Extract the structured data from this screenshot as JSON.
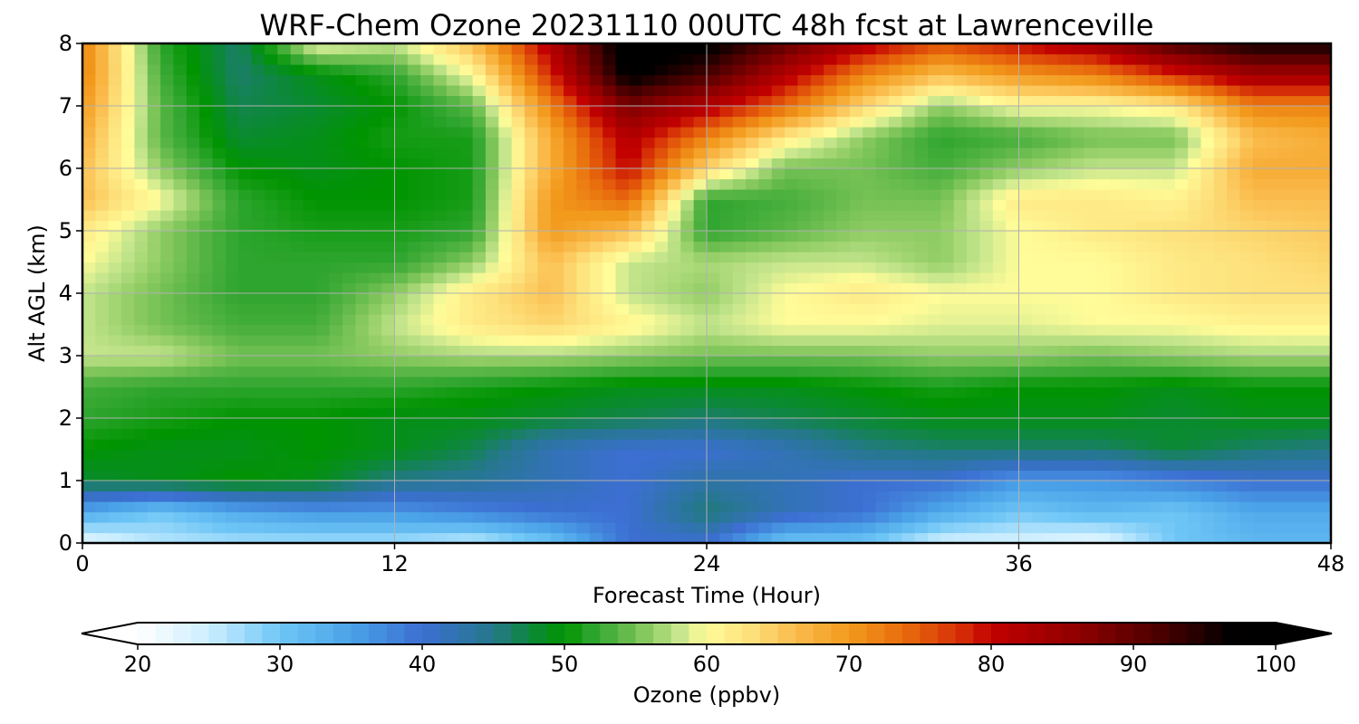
{
  "chart_data": {
    "type": "heatmap",
    "title": "WRF-Chem Ozone  20231110 00UTC 48h fcst at Lawrenceville",
    "xlabel": "Forecast Time (Hour)",
    "ylabel": "Alt AGL (km)",
    "xlim": [
      0,
      48
    ],
    "ylim": [
      0,
      8
    ],
    "xticks": [
      "0",
      "12",
      "24",
      "36",
      "48"
    ],
    "yticks": [
      "0",
      "1",
      "2",
      "3",
      "4",
      "5",
      "6",
      "7",
      "8"
    ],
    "grid": true,
    "x": [
      0,
      3,
      6,
      9,
      12,
      15,
      18,
      21,
      24,
      27,
      30,
      33,
      36,
      39,
      42,
      45,
      48
    ],
    "y": [
      0,
      0.5,
      1,
      1.5,
      2,
      2.5,
      3,
      3.5,
      4,
      4.5,
      5,
      5.5,
      6,
      6.5,
      7,
      7.5,
      8
    ],
    "z": [
      [
        22,
        26,
        27,
        27,
        27,
        25,
        30,
        40,
        40,
        30,
        30,
        24,
        24,
        22,
        30,
        32,
        32
      ],
      [
        34,
        30,
        34,
        36,
        36,
        38,
        40,
        40,
        46,
        42,
        40,
        34,
        30,
        32,
        30,
        34,
        34
      ],
      [
        48,
        49,
        50,
        49,
        45,
        44,
        42,
        40,
        43,
        42,
        40,
        40,
        36,
        36,
        38,
        40,
        40
      ],
      [
        50,
        49,
        49,
        50,
        49,
        47,
        42,
        40,
        40,
        42,
        45,
        46,
        46,
        46,
        48,
        46,
        45
      ],
      [
        52,
        51,
        50,
        50,
        49,
        49,
        48,
        47,
        46,
        47,
        48,
        49,
        49,
        49,
        48,
        49,
        49
      ],
      [
        53,
        52,
        52,
        52,
        52,
        51,
        50,
        49,
        49,
        49,
        50,
        51,
        50,
        50,
        49,
        50,
        50
      ],
      [
        58,
        58,
        55,
        55,
        56,
        57,
        57,
        56,
        55,
        55,
        55,
        56,
        56,
        55,
        56,
        57,
        57
      ],
      [
        58,
        55,
        53,
        53,
        58,
        62,
        64,
        61,
        58,
        60,
        60,
        59,
        59,
        60,
        60,
        61,
        61
      ],
      [
        58,
        55,
        52,
        52,
        56,
        62,
        66,
        58,
        56,
        60,
        62,
        60,
        60,
        60,
        62,
        63,
        63
      ],
      [
        60,
        56,
        52,
        52,
        52,
        56,
        66,
        58,
        57,
        58,
        58,
        56,
        60,
        60,
        62,
        63,
        64
      ],
      [
        62,
        56,
        52,
        51,
        51,
        52,
        70,
        66,
        52,
        54,
        56,
        56,
        60,
        62,
        63,
        64,
        65
      ],
      [
        66,
        60,
        52,
        50,
        50,
        51,
        70,
        74,
        52,
        53,
        55,
        55,
        62,
        62,
        61,
        66,
        66
      ],
      [
        66,
        56,
        50,
        49,
        50,
        51,
        68,
        80,
        64,
        55,
        55,
        53,
        56,
        58,
        58,
        68,
        68
      ],
      [
        68,
        54,
        48,
        49,
        51,
        51,
        68,
        82,
        72,
        62,
        56,
        52,
        53,
        55,
        55,
        66,
        68
      ],
      [
        70,
        54,
        47,
        48,
        50,
        54,
        72,
        88,
        82,
        74,
        64,
        56,
        60,
        60,
        62,
        72,
        72
      ],
      [
        72,
        53,
        46,
        49,
        52,
        60,
        78,
        98,
        92,
        82,
        72,
        66,
        70,
        72,
        78,
        84,
        84
      ],
      [
        72,
        52,
        46,
        60,
        58,
        66,
        82,
        100,
        98,
        90,
        82,
        76,
        80,
        84,
        92,
        96,
        96
      ]
    ],
    "colorbar": {
      "label": "Ozone  (ppbv)",
      "vmin": 20,
      "vmax": 100,
      "ticks": [
        "20",
        "30",
        "40",
        "50",
        "60",
        "70",
        "80",
        "90",
        "100"
      ],
      "extend": "both",
      "colormap": [
        [
          20,
          "#ffffff"
        ],
        [
          25,
          "#cceeff"
        ],
        [
          30,
          "#6ec6f6"
        ],
        [
          35,
          "#4aa2e8"
        ],
        [
          40,
          "#3c6fd2"
        ],
        [
          45,
          "#24788a"
        ],
        [
          48,
          "#0a8a30"
        ],
        [
          50,
          "#009400"
        ],
        [
          52,
          "#2ea52e"
        ],
        [
          54,
          "#5ab646"
        ],
        [
          56,
          "#8fcc63"
        ],
        [
          58,
          "#c4e58c"
        ],
        [
          60,
          "#fffc99"
        ],
        [
          63,
          "#fde17c"
        ],
        [
          66,
          "#fbbe50"
        ],
        [
          70,
          "#f29a1c"
        ],
        [
          74,
          "#e86a0c"
        ],
        [
          78,
          "#d42c06"
        ],
        [
          80,
          "#c20000"
        ],
        [
          86,
          "#900000"
        ],
        [
          92,
          "#4a0000"
        ],
        [
          97,
          "#000000"
        ],
        [
          100,
          "#000000"
        ]
      ]
    }
  }
}
